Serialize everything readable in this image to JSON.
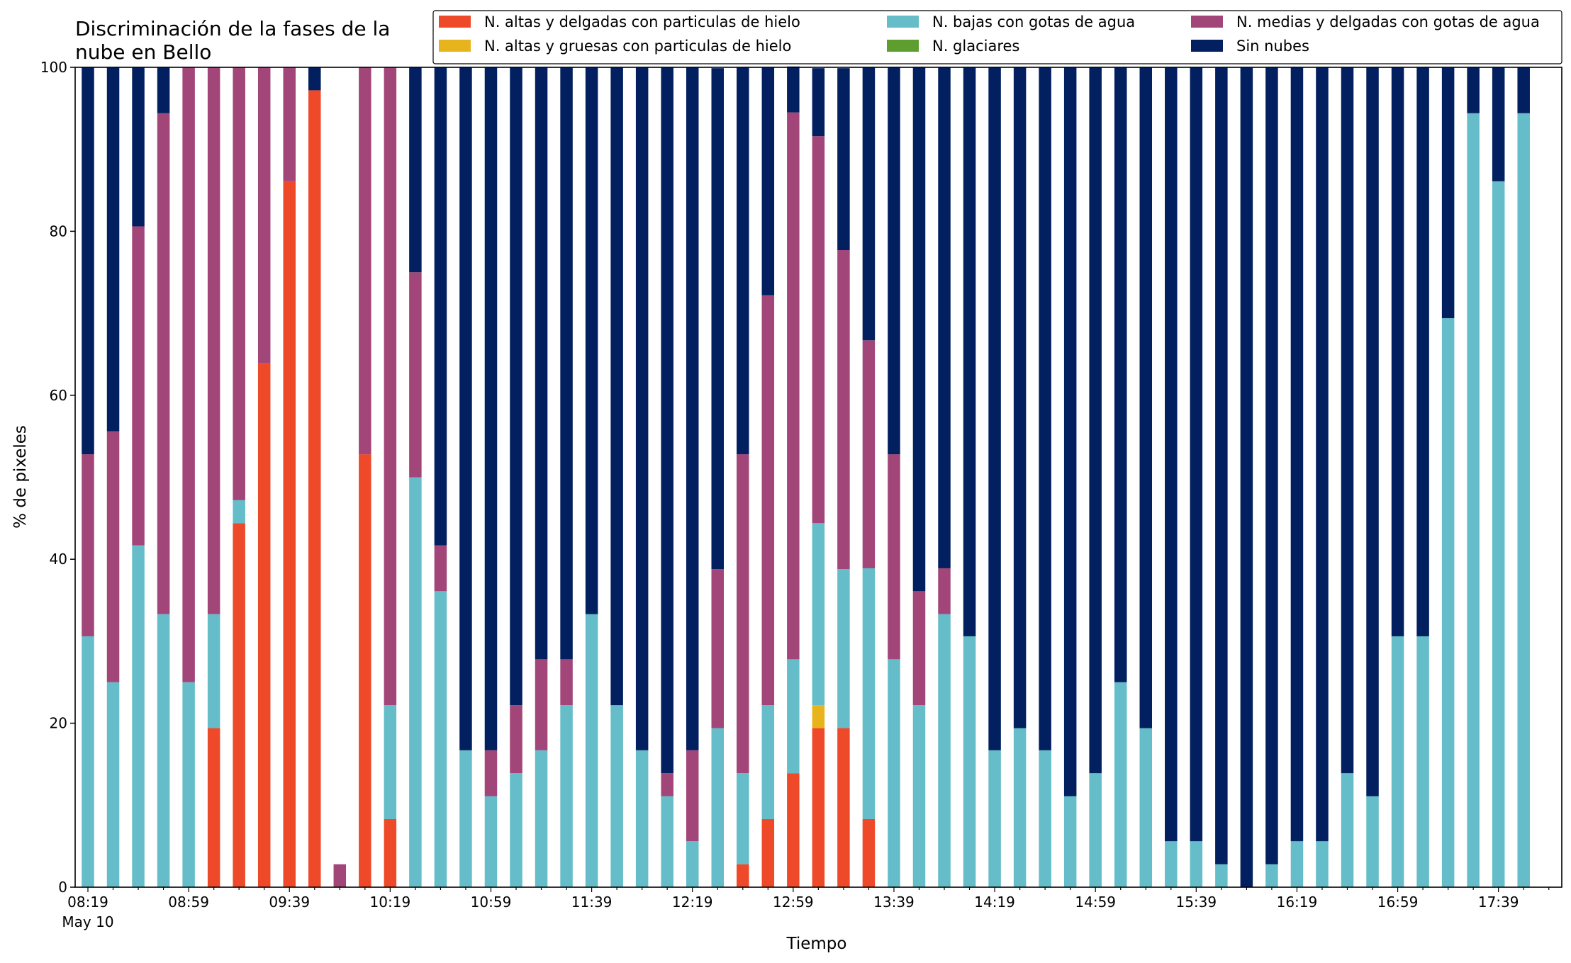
{
  "chart_data": {
    "type": "bar",
    "stacked": true,
    "title_lines": [
      "Discriminación de la fases de la",
      "nube en Bello"
    ],
    "xlabel": "Tiempo",
    "ylabel": "% de pixeles",
    "ylim": [
      0,
      100
    ],
    "yticks": [
      0,
      20,
      40,
      60,
      80,
      100
    ],
    "grid": false,
    "legend_position": "top-right",
    "x_tick_labels": [
      "08:19",
      "08:59",
      "09:39",
      "10:19",
      "10:59",
      "11:39",
      "12:19",
      "12:59",
      "13:39",
      "14:19",
      "14:59",
      "15:39",
      "16:19",
      "16:59",
      "17:39"
    ],
    "x_date_label": "May 10",
    "x_start_time": "08:19",
    "x_interval_minutes": 10,
    "series": [
      {
        "name": "N. altas y delgadas con particulas de hielo",
        "color": "#ee4a2a",
        "values": [
          0,
          0,
          0,
          0,
          0,
          19.4,
          44.4,
          63.9,
          86.1,
          97.2,
          0,
          52.8,
          8.3,
          0,
          0,
          0,
          0,
          0,
          0,
          0,
          0,
          0,
          0,
          0,
          0,
          0,
          2.8,
          8.3,
          13.9,
          19.4,
          19.4,
          8.3,
          0,
          0,
          0,
          0,
          0,
          0,
          0,
          0,
          0,
          0,
          0,
          0,
          0,
          0,
          0,
          0,
          0,
          0,
          0,
          0,
          0,
          0,
          0,
          0,
          0,
          0,
          0
        ]
      },
      {
        "name": "N. altas y gruesas con particulas de hielo",
        "color": "#e8b41e",
        "values": [
          0,
          0,
          0,
          0,
          0,
          0,
          0,
          0,
          0,
          0,
          0,
          0,
          0,
          0,
          0,
          0,
          0,
          0,
          0,
          0,
          0,
          0,
          0,
          0,
          0,
          0,
          0,
          0,
          0,
          2.8,
          0,
          0,
          0,
          0,
          0,
          0,
          0,
          0,
          0,
          0,
          0,
          0,
          0,
          0,
          0,
          0,
          0,
          0,
          0,
          0,
          0,
          0,
          0,
          0,
          0,
          0,
          0,
          0,
          0
        ]
      },
      {
        "name": "N. bajas con gotas de agua",
        "color": "#64bdc8",
        "values": [
          30.6,
          25,
          41.7,
          33.3,
          25,
          13.9,
          2.8,
          0,
          0,
          0,
          0,
          0,
          13.9,
          50,
          36.1,
          16.7,
          11.1,
          13.9,
          16.7,
          22.2,
          33.3,
          22.2,
          16.7,
          11.1,
          5.6,
          19.4,
          11.1,
          13.9,
          13.9,
          22.2,
          19.4,
          30.6,
          27.8,
          22.2,
          33.3,
          30.6,
          16.7,
          19.4,
          16.7,
          11.1,
          13.9,
          25,
          19.4,
          5.6,
          5.6,
          2.8,
          0,
          2.8,
          5.6,
          5.6,
          13.9,
          11.1,
          30.6,
          30.6,
          69.4,
          94.4,
          86.1,
          94.4,
          0
        ]
      },
      {
        "name": "N. glaciares",
        "color": "#5d9e2e",
        "values": [
          0,
          0,
          0,
          0,
          0,
          0,
          0,
          0,
          0,
          0,
          0,
          0,
          0,
          0,
          0,
          0,
          0,
          0,
          0,
          0,
          0,
          0,
          0,
          0,
          0,
          0,
          0,
          0,
          0,
          0,
          0,
          0,
          0,
          0,
          0,
          0,
          0,
          0,
          0,
          0,
          0,
          0,
          0,
          0,
          0,
          0,
          0,
          0,
          0,
          0,
          0,
          0,
          0,
          0,
          0,
          0,
          0,
          0,
          0
        ]
      },
      {
        "name": "N. medias y delgadas con gotas de agua",
        "color": "#a24679",
        "values": [
          22.2,
          30.6,
          38.9,
          61.1,
          75,
          66.7,
          52.8,
          36.1,
          13.9,
          0,
          2.8,
          47.2,
          77.8,
          25,
          5.6,
          0,
          5.6,
          8.3,
          11.1,
          5.6,
          0,
          0,
          0,
          2.8,
          11.1,
          19.4,
          38.9,
          50,
          66.7,
          47.2,
          38.9,
          27.8,
          25,
          13.9,
          5.6,
          0,
          0,
          0,
          0,
          0,
          0,
          0,
          0,
          0,
          0,
          0,
          0,
          0,
          0,
          0,
          0,
          0,
          0,
          0,
          0,
          0,
          0,
          0,
          0
        ]
      },
      {
        "name": "Sin nubes",
        "color": "#021f5f",
        "values": [
          47.2,
          44.4,
          19.4,
          5.6,
          0,
          0,
          0,
          0,
          0,
          2.8,
          0,
          0,
          0,
          25,
          58.3,
          83.3,
          83.3,
          77.8,
          72.2,
          72.2,
          66.7,
          77.8,
          83.3,
          86.1,
          83.3,
          61.1,
          47.2,
          27.8,
          5.6,
          8.3,
          22.2,
          33.3,
          47.2,
          63.9,
          61.1,
          69.4,
          83.3,
          80.6,
          83.3,
          88.9,
          86.1,
          75,
          80.6,
          94.4,
          94.4,
          97.2,
          100,
          97.2,
          94.4,
          94.4,
          86.1,
          88.9,
          69.4,
          69.4,
          30.6,
          5.6,
          13.9,
          5.6,
          0
        ]
      }
    ]
  },
  "colors": {
    "axis": "#000000",
    "legend_border": "#000000",
    "background": "#ffffff"
  }
}
